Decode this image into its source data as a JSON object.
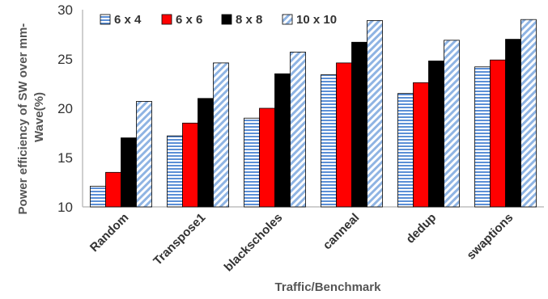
{
  "chart_data": {
    "type": "bar",
    "categories": [
      "Random",
      "Transpose1",
      "blackscholes",
      "canneal",
      "dedup",
      "swaptions"
    ],
    "series": [
      {
        "name": "6 x 4",
        "values": [
          12.1,
          17.2,
          19.0,
          23.4,
          21.5,
          24.2
        ],
        "pattern": "horizontal-stripes",
        "color": "#5b8fd6"
      },
      {
        "name": "6 x 6",
        "values": [
          13.5,
          18.5,
          20.0,
          24.6,
          22.6,
          24.9
        ],
        "pattern": "solid",
        "color": "#ff0000"
      },
      {
        "name": "8 x 8",
        "values": [
          17.0,
          21.0,
          23.5,
          26.7,
          24.8,
          27.0
        ],
        "pattern": "solid",
        "color": "#000000"
      },
      {
        "name": "10 x 10",
        "values": [
          20.7,
          24.6,
          25.7,
          28.9,
          26.9,
          29.0
        ],
        "pattern": "diagonal-stripes",
        "color": "#8fb4e3"
      }
    ],
    "title": "",
    "xlabel": "Traffic/Benchmark",
    "ylabel": "Power efficiency of SW over mm-Wave(%)",
    "ylabel_lines": [
      "Power efficiency of SW over mm-",
      "Wave(%)"
    ],
    "ylim": [
      10,
      30
    ],
    "yticks": [
      10,
      15,
      20,
      25,
      30
    ],
    "grid": false,
    "legend_position": "top-left"
  }
}
